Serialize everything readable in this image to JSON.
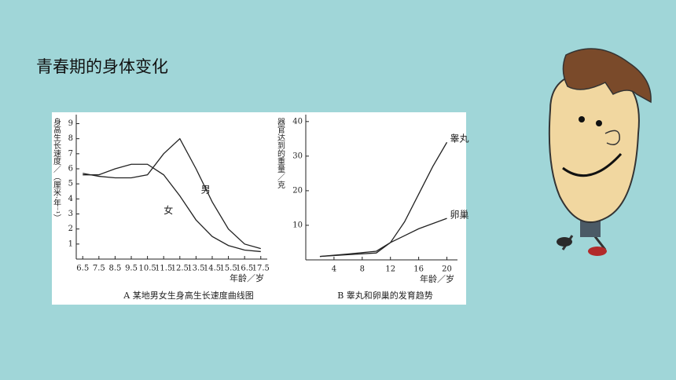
{
  "slide": {
    "title": "青春期的身体变化"
  },
  "chart_data": [
    {
      "type": "line",
      "caption": "A 某地男女生身高生长速度曲线图",
      "y_label": "身高生长速度／（厘米·年⁻¹）",
      "x_label": "年龄／岁",
      "x": [
        6.5,
        7.5,
        8.5,
        9.5,
        10.5,
        11.5,
        12.5,
        13.5,
        14.5,
        15.5,
        16.5,
        17.5
      ],
      "series": [
        {
          "name": "男",
          "color": "#222222",
          "values": [
            5.7,
            5.5,
            5.4,
            5.4,
            5.6,
            7.0,
            8.0,
            6.0,
            3.8,
            2.0,
            1.0,
            0.7
          ]
        },
        {
          "name": "女",
          "color": "#222222",
          "values": [
            5.6,
            5.6,
            6.0,
            6.3,
            6.3,
            5.6,
            4.2,
            2.6,
            1.5,
            0.9,
            0.6,
            0.5
          ]
        }
      ],
      "xlim": [
        6.1,
        17.9
      ],
      "xticks": [
        6.5,
        7.5,
        8.5,
        9.5,
        10.5,
        11.5,
        12.5,
        13.5,
        14.5,
        15.5,
        16.5,
        17.5
      ],
      "ylim": [
        0,
        9.6
      ],
      "yticks": [
        1,
        2,
        3,
        4,
        5,
        6,
        7,
        8,
        9
      ],
      "grid": false
    },
    {
      "type": "line",
      "caption": "B 睾丸和卵巢的发育趋势",
      "y_label": "器官达到的重量／克",
      "x_label": "年龄／岁",
      "x": [
        2,
        6,
        10,
        12,
        14,
        16,
        18,
        20
      ],
      "series": [
        {
          "name": "睾丸",
          "color": "#222222",
          "values": [
            1,
            1.5,
            2,
            5,
            11,
            19,
            27,
            34
          ]
        },
        {
          "name": "卵巢",
          "color": "#222222",
          "values": [
            1,
            1.7,
            2.5,
            5,
            7,
            9,
            10.5,
            12
          ]
        }
      ],
      "xlim": [
        0,
        21.5
      ],
      "xticks": [
        4,
        8,
        12,
        16,
        20
      ],
      "ylim": [
        0,
        42
      ],
      "yticks": [
        10,
        20,
        30,
        40
      ],
      "grid": false
    }
  ]
}
